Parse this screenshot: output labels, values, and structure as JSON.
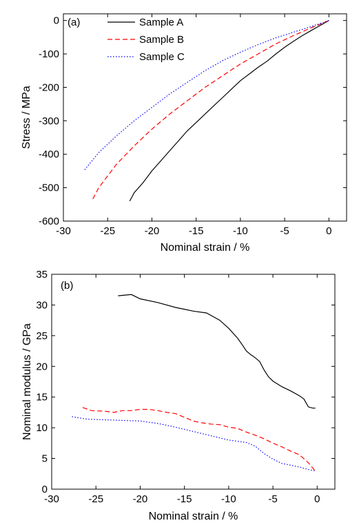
{
  "chart_data": [
    {
      "type": "line",
      "panel_label": "(a)",
      "xlabel": "Nominal strain / %",
      "ylabel": "Stress / MPa",
      "xlim": [
        -30,
        2
      ],
      "ylim": [
        -600,
        20
      ],
      "xticks": [
        -30,
        -25,
        -20,
        -15,
        -10,
        -5,
        0
      ],
      "yticks": [
        0,
        -100,
        -200,
        -300,
        -400,
        -500,
        -600
      ],
      "grid": false,
      "legend_position": "top-center",
      "series": [
        {
          "name": "Sample A",
          "color": "#000000",
          "style": "solid",
          "x": [
            0,
            -1,
            -2,
            -3,
            -4,
            -5,
            -6,
            -7,
            -8,
            -9,
            -10,
            -11,
            -12,
            -13,
            -14,
            -15,
            -16,
            -17,
            -18,
            -19,
            -20,
            -21,
            -22,
            -22.5
          ],
          "y": [
            0,
            -15,
            -30,
            -45,
            -62,
            -80,
            -100,
            -122,
            -140,
            -160,
            -180,
            -205,
            -230,
            -255,
            -280,
            -305,
            -330,
            -360,
            -390,
            -420,
            -450,
            -485,
            -515,
            -540
          ]
        },
        {
          "name": "Sample B",
          "color": "#ff0000",
          "style": "dashed",
          "x": [
            0,
            -2,
            -4,
            -6,
            -8,
            -10,
            -12,
            -14,
            -16,
            -18,
            -20,
            -22,
            -24,
            -26,
            -26.8
          ],
          "y": [
            0,
            -22,
            -45,
            -70,
            -100,
            -130,
            -165,
            -200,
            -240,
            -280,
            -325,
            -375,
            -430,
            -500,
            -540
          ]
        },
        {
          "name": "Sample C",
          "color": "#0000ff",
          "style": "dotted",
          "x": [
            0,
            -2,
            -4,
            -6,
            -8,
            -10,
            -12,
            -14,
            -16,
            -18,
            -20,
            -22,
            -24,
            -26,
            -27.7
          ],
          "y": [
            0,
            -18,
            -35,
            -52,
            -72,
            -95,
            -120,
            -150,
            -185,
            -220,
            -260,
            -300,
            -345,
            -395,
            -450
          ]
        }
      ]
    },
    {
      "type": "line",
      "panel_label": "(b)",
      "xlabel": "Nominal strain / %",
      "ylabel": "Nominal modulus / GPa",
      "xlim": [
        -30,
        2
      ],
      "ylim": [
        0,
        35
      ],
      "xticks": [
        -30,
        -25,
        -20,
        -15,
        -10,
        -5,
        0
      ],
      "yticks": [
        0,
        5,
        10,
        15,
        20,
        25,
        30,
        35
      ],
      "grid": false,
      "series": [
        {
          "name": "Sample A",
          "color": "#000000",
          "style": "solid",
          "x": [
            -22.5,
            -21,
            -20,
            -18,
            -16,
            -15,
            -14,
            -12.5,
            -11,
            -10,
            -9,
            -8.5,
            -8,
            -7.5,
            -7,
            -6.5,
            -6,
            -5.5,
            -5,
            -4,
            -3,
            -2,
            -1.5,
            -1,
            -0.5,
            -0.2
          ],
          "y": [
            31.5,
            31.7,
            31.0,
            30.4,
            29.6,
            29.3,
            29.0,
            28.7,
            27.5,
            26.2,
            24.6,
            23.6,
            22.5,
            21.9,
            21.4,
            20.8,
            19.4,
            18.3,
            17.6,
            16.7,
            16.0,
            15.2,
            14.7,
            13.4,
            13.2,
            13.2
          ]
        },
        {
          "name": "Sample B",
          "color": "#ff0000",
          "style": "dashed",
          "x": [
            -26.5,
            -25.5,
            -24,
            -23,
            -22,
            -21,
            -20,
            -19,
            -18,
            -17,
            -16,
            -15,
            -14,
            -13,
            -12,
            -11,
            -10,
            -9,
            -8,
            -7,
            -6,
            -5,
            -4,
            -3,
            -2,
            -1,
            -0.3
          ],
          "y": [
            13.3,
            12.8,
            12.7,
            12.5,
            12.8,
            12.8,
            13.0,
            13.0,
            12.8,
            12.5,
            12.3,
            11.7,
            11.1,
            10.8,
            10.6,
            10.5,
            10.1,
            9.9,
            9.3,
            8.8,
            8.2,
            7.5,
            6.9,
            6.2,
            5.6,
            4.3,
            3.1
          ]
        },
        {
          "name": "Sample C",
          "color": "#0000ff",
          "style": "dotted",
          "x": [
            -27.7,
            -26,
            -24,
            -22,
            -20,
            -18,
            -16,
            -14,
            -12,
            -10,
            -8,
            -7,
            -6,
            -5,
            -4,
            -3,
            -2,
            -1,
            -0.3
          ],
          "y": [
            11.8,
            11.4,
            11.3,
            11.2,
            11.1,
            10.7,
            10.1,
            9.4,
            8.7,
            8.0,
            7.6,
            7.0,
            5.8,
            4.9,
            4.2,
            3.9,
            3.6,
            3.2,
            3.0
          ]
        }
      ]
    }
  ]
}
